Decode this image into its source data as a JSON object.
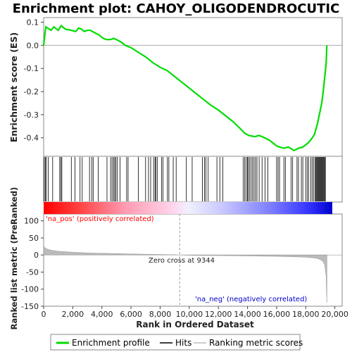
{
  "title": "Enrichment plot: CAHOY_OLIGODENDROCUTIC",
  "colors": {
    "es_line": "#00dd00",
    "hits": "#000000",
    "metric_fill": "#bbbbbb",
    "pos_label": "#ff0000",
    "neg_label": "#0000cc",
    "zero_line": "#999999"
  },
  "top_panel": {
    "ylabel": "Enrichment score (ES)",
    "yticks": [
      "0.1",
      "0.0",
      "-0.1",
      "-0.2",
      "-0.3",
      "-0.4"
    ]
  },
  "bottom_panel": {
    "ylabel": "Ranked list metric (PreRanked)",
    "yticks": [
      "100",
      "50",
      "0",
      "-50",
      "-100",
      "-150"
    ],
    "pos_label": "'na_pos' (positively correlated)",
    "neg_label": "'na_neg' (negatively correlated)",
    "zero_cross_label": "Zero cross at 9344"
  },
  "xlabel": "Rank in Ordered Dataset",
  "xticks": [
    "0",
    "2,000",
    "4,000",
    "6,000",
    "8,000",
    "10,000",
    "12,000",
    "14,000",
    "16,000",
    "18,000",
    "20,000"
  ],
  "legend": {
    "items": [
      {
        "label": "Enrichment profile",
        "color": "#00dd00",
        "icon": "green-line"
      },
      {
        "label": "Hits",
        "color": "#000000",
        "icon": "black-line"
      },
      {
        "label": "Ranking metric scores",
        "color": "#bbbbbb",
        "icon": "gray-line"
      }
    ]
  },
  "chart_data": [
    {
      "type": "line",
      "name": "enrichment-profile",
      "xlim": [
        0,
        20500
      ],
      "ylim": [
        -0.48,
        0.12
      ],
      "x": [
        0,
        50,
        150,
        500,
        700,
        1000,
        1200,
        1500,
        1900,
        2200,
        2400,
        2600,
        2800,
        3000,
        3200,
        3500,
        3800,
        4100,
        4300,
        4600,
        4800,
        5000,
        5300,
        5600,
        6000,
        6500,
        7000,
        7500,
        8000,
        8500,
        9000,
        9500,
        10000,
        10500,
        11000,
        11500,
        12000,
        12500,
        13000,
        13500,
        13800,
        14100,
        14500,
        14800,
        15000,
        15500,
        16000,
        16200,
        16500,
        16800,
        17200,
        17500,
        17800,
        18000,
        18200,
        18400,
        18600,
        18800,
        19000,
        19100,
        19200,
        19300,
        19400,
        19450
      ],
      "y": [
        0.0,
        0.03,
        0.08,
        0.065,
        0.08,
        0.065,
        0.085,
        0.07,
        0.065,
        0.06,
        0.075,
        0.07,
        0.06,
        0.065,
        0.065,
        0.055,
        0.045,
        0.03,
        0.025,
        0.025,
        0.03,
        0.025,
        0.015,
        0.0,
        -0.01,
        -0.03,
        -0.05,
        -0.075,
        -0.095,
        -0.11,
        -0.135,
        -0.16,
        -0.185,
        -0.21,
        -0.235,
        -0.26,
        -0.28,
        -0.305,
        -0.33,
        -0.36,
        -0.38,
        -0.39,
        -0.395,
        -0.39,
        -0.395,
        -0.41,
        -0.435,
        -0.44,
        -0.445,
        -0.44,
        -0.455,
        -0.445,
        -0.44,
        -0.43,
        -0.42,
        -0.405,
        -0.385,
        -0.34,
        -0.28,
        -0.25,
        -0.2,
        -0.14,
        -0.08,
        0.0
      ]
    },
    {
      "type": "scatter",
      "name": "hits",
      "x": [
        40,
        120,
        180,
        320,
        620,
        1100,
        1180,
        1250,
        1900,
        2150,
        2500,
        2650,
        3150,
        3300,
        3400,
        3750,
        4350,
        4600,
        4700,
        4800,
        4880,
        4950,
        5050,
        5250,
        5700,
        5800,
        6500,
        7000,
        7200,
        7350,
        7550,
        7650,
        7700,
        7800,
        8100,
        8200,
        8500,
        8600,
        8900,
        9100,
        9800,
        10200,
        10900,
        11050,
        11150,
        11300,
        11900,
        12100,
        12300,
        13700,
        13800,
        13900,
        14000,
        14050,
        14150,
        14250,
        14350,
        14450,
        14550,
        14650,
        14800,
        15000,
        15200,
        15400,
        16000,
        16100,
        16200,
        16500,
        16600,
        17000,
        17100,
        17400,
        17500,
        17700,
        17800,
        18000,
        18100,
        18200,
        18350,
        18450,
        18550,
        18650,
        18700,
        18750,
        18800,
        18850,
        18900,
        18950,
        19000,
        19050,
        19100,
        19150,
        19200,
        19250,
        19300,
        19350
      ]
    },
    {
      "type": "area",
      "name": "ranked-list-metric",
      "xlim": [
        0,
        20500
      ],
      "ylim": [
        -150,
        120
      ],
      "x": [
        0,
        50,
        200,
        500,
        1000,
        2000,
        3000,
        4000,
        5000,
        6000,
        7000,
        8000,
        9000,
        9344,
        10000,
        11000,
        12000,
        13000,
        14000,
        15000,
        16000,
        17000,
        18000,
        18500,
        18800,
        19000,
        19100,
        19200,
        19300,
        19400,
        19450
      ],
      "y": [
        28,
        22,
        18,
        14,
        11,
        8,
        6,
        5,
        4,
        3,
        2.2,
        1.5,
        0.7,
        0,
        -0.6,
        -1.2,
        -1.6,
        -2.1,
        -2.6,
        -3.2,
        -3.9,
        -4.8,
        -6.5,
        -8,
        -10,
        -13,
        -16,
        -20,
        -28,
        -60,
        -140
      ]
    }
  ]
}
